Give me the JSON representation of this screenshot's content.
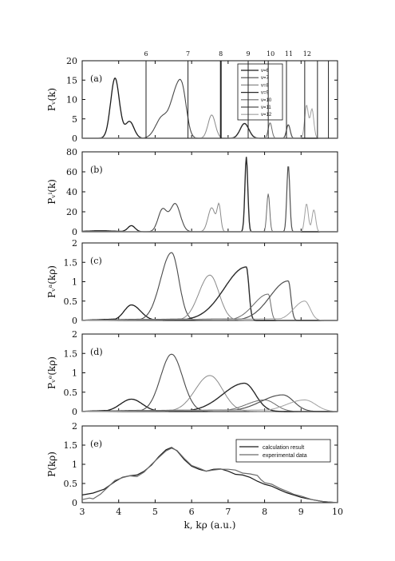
{
  "chart_data": {
    "type": "line",
    "x_range": [
      3,
      10
    ],
    "x_ticks": [
      "3",
      "4",
      "5",
      "6",
      "7",
      "8",
      "9",
      "10"
    ],
    "xlabel": "k, kρ (a.u.)",
    "top_lines": [
      {
        "label": "6",
        "x": 4.75
      },
      {
        "label": "7",
        "x": 5.9
      },
      {
        "label": "8",
        "x": 6.8
      },
      {
        "label": "9",
        "x": 7.55
      },
      {
        "label": "10",
        "x": 8.1
      },
      {
        "label": "11",
        "x": 8.6
      },
      {
        "label": "12",
        "x": 9.1
      },
      {
        "label": "",
        "x": 9.45
      },
      {
        "label": "",
        "x": 9.75
      }
    ],
    "panels": [
      {
        "id": "a",
        "label": "(a)",
        "ylabel": "Pᵥ(k)",
        "ylim": [
          0,
          20
        ],
        "yticks": [
          "0",
          "5",
          "10",
          "15",
          "20"
        ],
        "legend": [
          "v=6",
          "v=7",
          "v=8",
          "v=9",
          "v=10",
          "v=11",
          "v=12"
        ],
        "series": [
          {
            "peaks": [
              [
                3.9,
                15.5,
                0.12
              ],
              [
                4.3,
                4.3,
                0.12
              ]
            ]
          },
          {
            "peaks": [
              [
                5.2,
                5.5,
                0.18
              ],
              [
                5.55,
                9.5,
                0.14
              ],
              [
                5.75,
                10.5,
                0.12
              ]
            ]
          },
          {
            "peaks": [
              [
                6.55,
                6.0,
                0.1
              ]
            ]
          },
          {
            "peaks": [
              [
                7.45,
                3.8,
                0.12
              ]
            ]
          },
          {
            "peaks": [
              [
                8.15,
                4.0,
                0.05
              ]
            ]
          },
          {
            "peaks": [
              [
                8.65,
                3.5,
                0.05
              ]
            ]
          },
          {
            "peaks": [
              [
                9.15,
                8.5,
                0.05
              ],
              [
                9.3,
                7.5,
                0.05
              ]
            ]
          }
        ]
      },
      {
        "id": "b",
        "label": "(b)",
        "ylabel": "Pᵥⁱ(k)",
        "ylim": [
          0,
          80
        ],
        "yticks": [
          "0",
          "20",
          "40",
          "60",
          "80"
        ],
        "series": [
          {
            "peaks": [
              [
                4.35,
                6.0,
                0.1
              ],
              [
                3.5,
                1.0,
                0.4
              ]
            ]
          },
          {
            "peaks": [
              [
                5.2,
                22.0,
                0.12
              ],
              [
                5.55,
                28.0,
                0.14
              ]
            ]
          },
          {
            "peaks": [
              [
                6.55,
                24.0,
                0.1
              ],
              [
                6.75,
                25.0,
                0.05
              ]
            ]
          },
          {
            "peaks": [
              [
                7.5,
                75.0,
                0.04
              ]
            ]
          },
          {
            "peaks": [
              [
                8.1,
                38.0,
                0.04
              ]
            ]
          },
          {
            "peaks": [
              [
                8.65,
                67.0,
                0.04
              ]
            ]
          },
          {
            "peaks": [
              [
                9.15,
                28.0,
                0.05
              ],
              [
                9.35,
                22.0,
                0.05
              ]
            ]
          }
        ]
      },
      {
        "id": "c",
        "label": "(c)",
        "ylabel": "Pᵥᵃ(kρ)",
        "ylim": [
          0,
          2
        ],
        "yticks": [
          "0",
          "0.5",
          "1",
          "1.5",
          "2"
        ],
        "series": [
          {
            "peak": 4.35,
            "amp": 0.4,
            "wl": 0.2,
            "wr": 0.25
          },
          {
            "peak": 5.45,
            "amp": 1.75,
            "wl": 0.3,
            "wr": 0.2
          },
          {
            "peak": 6.5,
            "amp": 1.17,
            "wl": 0.3,
            "wr": 0.25
          },
          {
            "peak": 7.5,
            "amp": 1.38,
            "wl": 0.6,
            "wr": 0.07
          },
          {
            "peak": 8.1,
            "amp": 0.68,
            "wl": 0.4,
            "wr": 0.07
          },
          {
            "peak": 8.65,
            "amp": 1.02,
            "wl": 0.5,
            "wr": 0.07
          },
          {
            "peak": 9.1,
            "amp": 0.5,
            "wl": 0.3,
            "wr": 0.15
          }
        ]
      },
      {
        "id": "d",
        "label": "(d)",
        "ylabel": "Pᵥᵉ(kρ)",
        "ylim": [
          0,
          2
        ],
        "yticks": [
          "0",
          "0.5",
          "1",
          "1.5",
          "2"
        ],
        "series": [
          {
            "peak": 4.35,
            "amp": 0.32,
            "wl": 0.3,
            "wr": 0.3
          },
          {
            "peak": 5.45,
            "amp": 1.48,
            "wl": 0.3,
            "wr": 0.3
          },
          {
            "peak": 6.5,
            "amp": 0.93,
            "wl": 0.4,
            "wr": 0.35
          },
          {
            "peak": 7.45,
            "amp": 0.73,
            "wl": 0.6,
            "wr": 0.3
          },
          {
            "peak": 8.0,
            "amp": 0.3,
            "wl": 0.5,
            "wr": 0.3
          },
          {
            "peak": 8.5,
            "amp": 0.43,
            "wl": 0.6,
            "wr": 0.3
          },
          {
            "peak": 9.1,
            "amp": 0.3,
            "wl": 0.5,
            "wr": 0.3
          }
        ]
      },
      {
        "id": "e",
        "label": "(e)",
        "ylabel": "P(kρ)",
        "ylim": [
          0,
          2
        ],
        "yticks": [
          "0",
          "0.5",
          "1",
          "1.5",
          "2"
        ],
        "legend": [
          "calculation result",
          "experimental data"
        ],
        "series": [
          {
            "name": "calculation result",
            "points": [
              [
                3.0,
                0.2
              ],
              [
                3.3,
                0.25
              ],
              [
                3.6,
                0.35
              ],
              [
                3.9,
                0.55
              ],
              [
                4.1,
                0.66
              ],
              [
                4.3,
                0.7
              ],
              [
                4.5,
                0.72
              ],
              [
                4.7,
                0.82
              ],
              [
                4.9,
                0.98
              ],
              [
                5.1,
                1.2
              ],
              [
                5.3,
                1.38
              ],
              [
                5.45,
                1.44
              ],
              [
                5.6,
                1.35
              ],
              [
                5.8,
                1.12
              ],
              [
                6.0,
                0.95
              ],
              [
                6.2,
                0.87
              ],
              [
                6.4,
                0.82
              ],
              [
                6.6,
                0.87
              ],
              [
                6.8,
                0.88
              ],
              [
                7.0,
                0.82
              ],
              [
                7.2,
                0.74
              ],
              [
                7.4,
                0.72
              ],
              [
                7.6,
                0.66
              ],
              [
                7.8,
                0.56
              ],
              [
                8.0,
                0.48
              ],
              [
                8.2,
                0.43
              ],
              [
                8.4,
                0.34
              ],
              [
                8.6,
                0.26
              ],
              [
                8.8,
                0.2
              ],
              [
                9.0,
                0.14
              ],
              [
                9.3,
                0.08
              ],
              [
                9.6,
                0.03
              ],
              [
                10.0,
                0.0
              ]
            ]
          },
          {
            "name": "experimental data",
            "points": [
              [
                3.0,
                0.08
              ],
              [
                3.2,
                0.12
              ],
              [
                3.3,
                0.1
              ],
              [
                3.5,
                0.22
              ],
              [
                3.7,
                0.4
              ],
              [
                3.9,
                0.58
              ],
              [
                4.1,
                0.65
              ],
              [
                4.3,
                0.7
              ],
              [
                4.5,
                0.68
              ],
              [
                4.7,
                0.8
              ],
              [
                4.9,
                1.0
              ],
              [
                5.1,
                1.18
              ],
              [
                5.3,
                1.35
              ],
              [
                5.45,
                1.42
              ],
              [
                5.6,
                1.36
              ],
              [
                5.8,
                1.15
              ],
              [
                6.0,
                0.97
              ],
              [
                6.2,
                0.9
              ],
              [
                6.4,
                0.82
              ],
              [
                6.6,
                0.85
              ],
              [
                6.8,
                0.87
              ],
              [
                7.0,
                0.87
              ],
              [
                7.2,
                0.85
              ],
              [
                7.4,
                0.77
              ],
              [
                7.6,
                0.75
              ],
              [
                7.8,
                0.71
              ],
              [
                7.9,
                0.6
              ],
              [
                8.0,
                0.52
              ],
              [
                8.2,
                0.48
              ],
              [
                8.4,
                0.38
              ],
              [
                8.6,
                0.3
              ],
              [
                8.8,
                0.22
              ],
              [
                9.0,
                0.17
              ],
              [
                9.3,
                0.08
              ],
              [
                9.6,
                0.03
              ],
              [
                10.0,
                0.0
              ]
            ]
          }
        ]
      }
    ]
  }
}
